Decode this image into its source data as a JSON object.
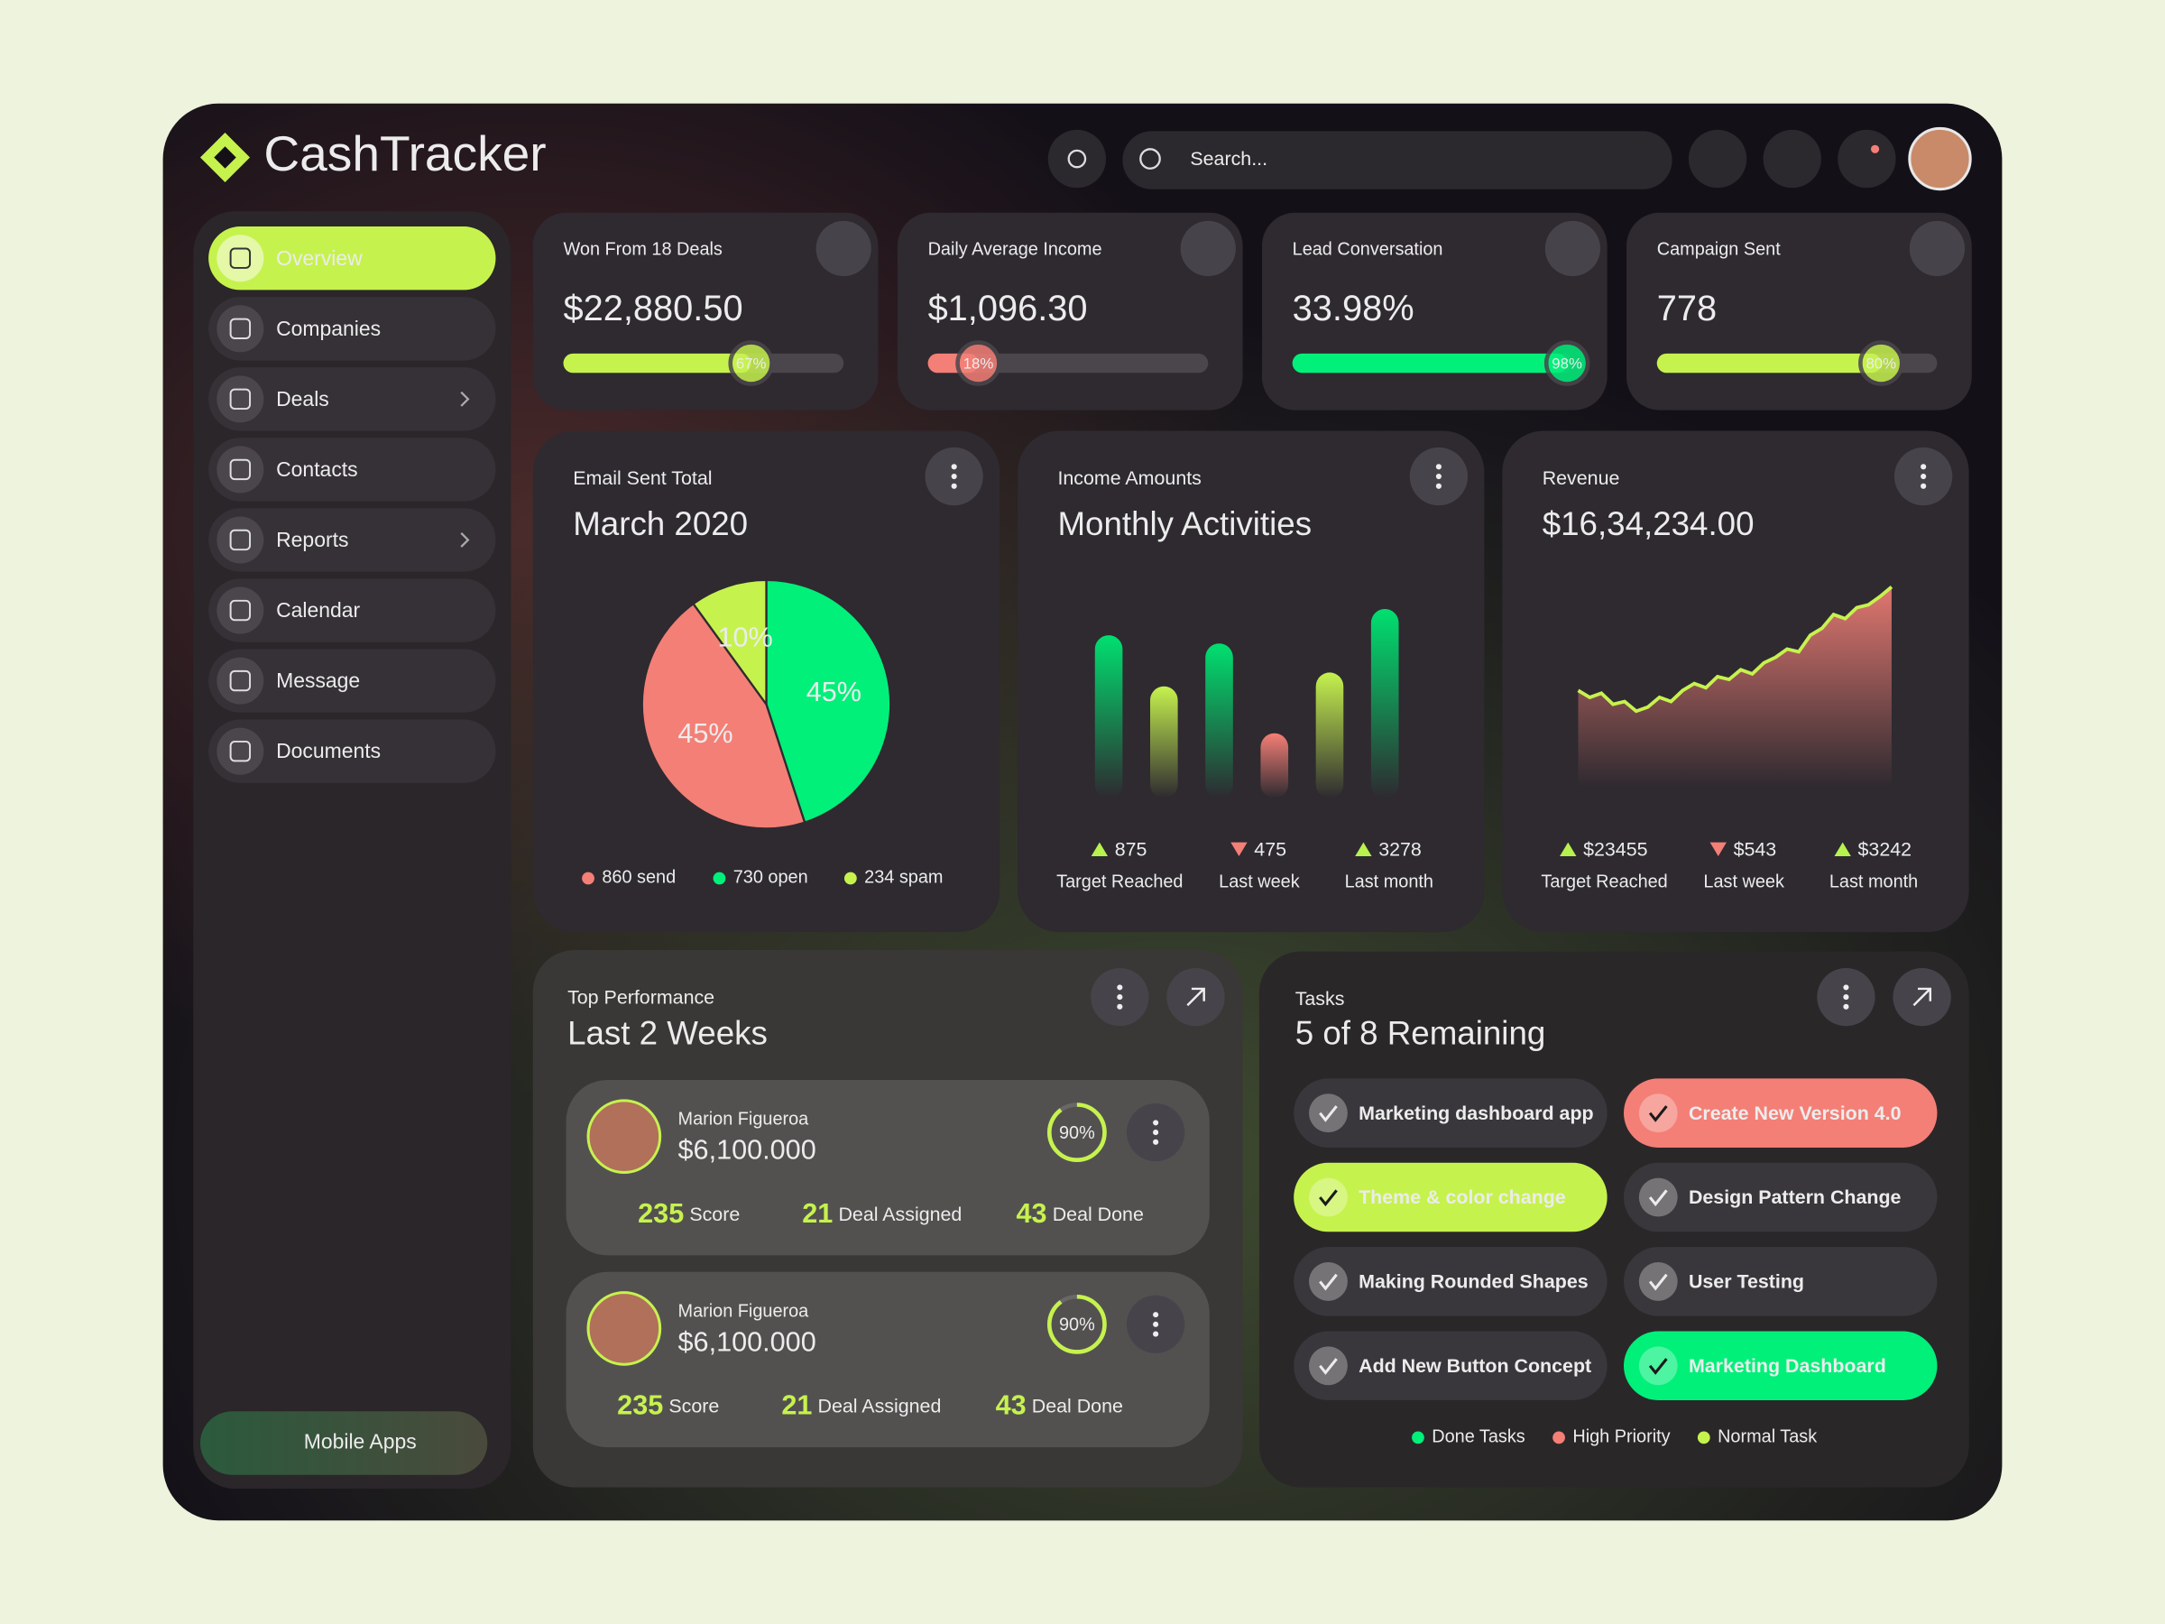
{
  "brand": "CashTracker",
  "search_placeholder": "Search...",
  "nav": [
    {
      "label": "Overview",
      "active": true
    },
    {
      "label": "Companies"
    },
    {
      "label": "Deals",
      "submenu": true
    },
    {
      "label": "Contacts"
    },
    {
      "label": "Reports",
      "submenu": true
    },
    {
      "label": "Calendar"
    },
    {
      "label": "Message"
    },
    {
      "label": "Documents"
    }
  ],
  "mobile_apps": "Mobile Apps",
  "stats": [
    {
      "label": "Won From 18 Deals",
      "value": "$22,880.50",
      "progress": 67,
      "progress_label": "67%",
      "color": "#c6f24e"
    },
    {
      "label": "Daily Average Income",
      "value": "$1,096.30",
      "progress": 18,
      "progress_label": "18%",
      "color": "#f47f76"
    },
    {
      "label": "Lead Conversation",
      "value": "33.98%",
      "progress": 98,
      "progress_label": "98%",
      "color": "#00f07a"
    },
    {
      "label": "Campaign Sent",
      "value": "778",
      "progress": 80,
      "progress_label": "80%",
      "color": "#c6f24e"
    }
  ],
  "email_card": {
    "subtitle": "Email Sent Total",
    "title": "March 2020",
    "type": "pie",
    "slices": [
      {
        "value": 45,
        "label": "45%",
        "color": "#00f07a"
      },
      {
        "value": 45,
        "label": "45%",
        "color": "#f47f76"
      },
      {
        "value": 10,
        "label": "10%",
        "color": "#c6f24e"
      }
    ],
    "legend": [
      {
        "text": "860 send",
        "color": "#f47f76"
      },
      {
        "text": "730 open",
        "color": "#00f07a"
      },
      {
        "text": "234 spam",
        "color": "#c6f24e"
      }
    ]
  },
  "income_card": {
    "subtitle": "Income Amounts",
    "title": "Monthly Activities",
    "type": "bar",
    "values": [
      118,
      81,
      112,
      47,
      91,
      137
    ],
    "colors": [
      "#00e070",
      "#c6f24e",
      "#00e070",
      "#f47f76",
      "#c6f24e",
      "#00e070"
    ],
    "ylim": [
      0,
      150
    ],
    "stats": [
      {
        "value": "875",
        "label": "Target Reached",
        "trend": "up"
      },
      {
        "value": "475",
        "label": "Last week",
        "trend": "down"
      },
      {
        "value": "3278",
        "label": "Last month",
        "trend": "up"
      }
    ]
  },
  "revenue_card": {
    "subtitle": "Revenue",
    "title": "$16,34,234.00",
    "type": "area",
    "values": [
      70,
      65,
      68,
      60,
      62,
      55,
      58,
      65,
      62,
      70,
      75,
      72,
      80,
      78,
      85,
      82,
      90,
      94,
      100,
      98,
      110,
      115,
      125,
      122,
      130,
      132,
      138,
      145
    ],
    "ylim": [
      0,
      150
    ],
    "line_color": "#c6f24e",
    "fill_color": "#f47f76",
    "stats": [
      {
        "value": "$23455",
        "label": "Target Reached",
        "trend": "up"
      },
      {
        "value": "$543",
        "label": "Last week",
        "trend": "down"
      },
      {
        "value": "$3242",
        "label": "Last month",
        "trend": "up"
      }
    ]
  },
  "performance": {
    "subtitle": "Top Performance",
    "title": "Last 2 Weeks",
    "people": [
      {
        "name": "Marion Figueroa",
        "amount": "$6,100.000",
        "progress": 90,
        "progress_label": "90%",
        "score": "235",
        "score_label": "Score",
        "assigned": "21",
        "assigned_label": "Deal Assigned",
        "done": "43",
        "done_label": "Deal Done"
      },
      {
        "name": "Marion Figueroa",
        "amount": "$6,100.000",
        "progress": 90,
        "progress_label": "90%",
        "score": "235",
        "score_label": "Score",
        "assigned": "21",
        "assigned_label": "Deal Assigned",
        "done": "43",
        "done_label": "Deal Done"
      }
    ]
  },
  "tasks": {
    "subtitle": "Tasks",
    "title": "5 of 8 Remaining",
    "items": [
      {
        "text": "Marketing dashboard app",
        "color": "#3a373c",
        "text_color": "#ececec"
      },
      {
        "text": "Create New Version 4.0",
        "color": "#f47f76",
        "text_color": "#1a1a1a"
      },
      {
        "text": "Theme & color change",
        "color": "#c6f24e",
        "text_color": "#1a1a1a"
      },
      {
        "text": "Design Pattern Change",
        "color": "#3a373c",
        "text_color": "#ececec"
      },
      {
        "text": "Making Rounded Shapes",
        "color": "#3a373c",
        "text_color": "#ececec"
      },
      {
        "text": "User Testing",
        "color": "#3a373c",
        "text_color": "#ececec"
      },
      {
        "text": "Add New Button Concept",
        "color": "#3a373c",
        "text_color": "#ececec"
      },
      {
        "text": "Marketing Dashboard",
        "color": "#00f07a",
        "text_color": "#1a1a1a"
      }
    ],
    "legend": [
      {
        "text": "Done Tasks",
        "color": "#00f07a"
      },
      {
        "text": "High Priority",
        "color": "#f47f76"
      },
      {
        "text": "Normal Task",
        "color": "#c6f24e"
      }
    ]
  }
}
